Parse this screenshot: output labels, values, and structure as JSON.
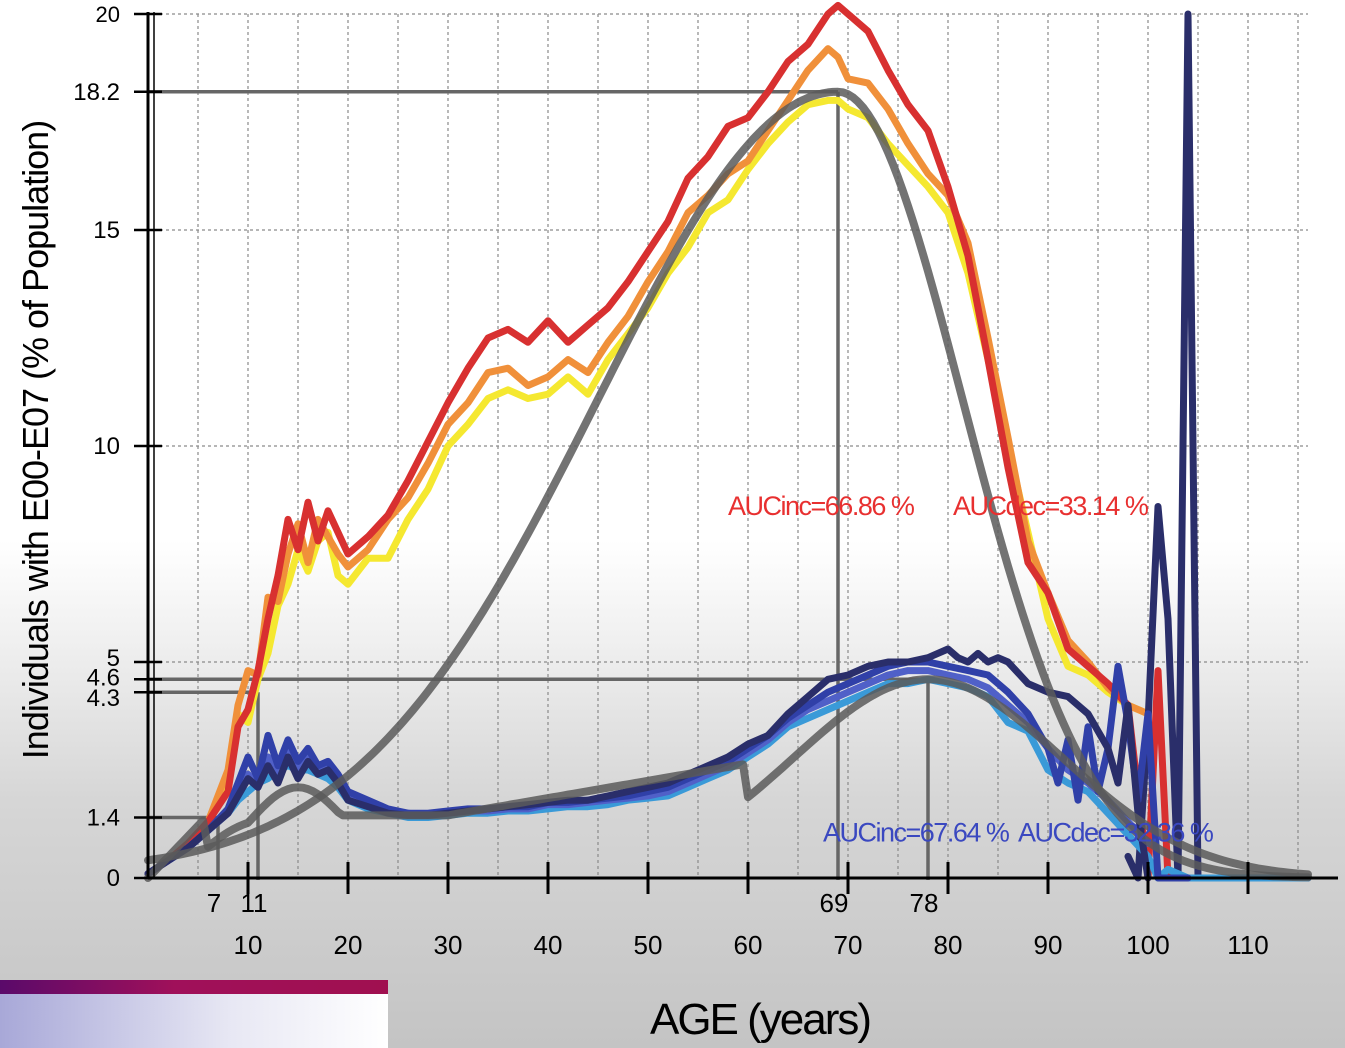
{
  "chart_data": {
    "type": "line",
    "title": "",
    "xlabel": "AGE (years)",
    "ylabel": "Individuals with E00-E07 (% of Population)",
    "xlim": [
      0,
      116
    ],
    "ylim": [
      0,
      20
    ],
    "x_ticks": [
      10,
      20,
      30,
      40,
      50,
      60,
      70,
      80,
      90,
      100,
      110
    ],
    "y_ticks": [
      0,
      1.4,
      4.3,
      4.6,
      5,
      10,
      15,
      18.2,
      20
    ],
    "grid": true,
    "markers": [
      {
        "label": "7",
        "x": 7,
        "y": 1.4
      },
      {
        "label": "11",
        "x": 11,
        "y": 4.3
      },
      {
        "label": "69",
        "x": 69,
        "y": 18.2
      },
      {
        "label": "78",
        "x": 78,
        "y": 4.6
      }
    ],
    "annotations": [
      {
        "text": "AUCinc=66.86 %",
        "x": 58,
        "y": 8.4,
        "color": "#e83030"
      },
      {
        "text": "AUCdec=33.14 %",
        "x": 80.5,
        "y": 8.4,
        "color": "#e83030"
      },
      {
        "text": "AUCinc=67.64 %",
        "x": 67.5,
        "y": 0.85,
        "color": "#3a48c0"
      },
      {
        "text": "AUCdec=32.36 %",
        "x": 87,
        "y": 0.85,
        "color": "#3a48c0"
      }
    ],
    "series": [
      {
        "color": "#f5e830",
        "group": "upper",
        "x": [
          0,
          2,
          4,
          6,
          8,
          9,
          10,
          11,
          12,
          13,
          14,
          15,
          16,
          17,
          18,
          19,
          20,
          22,
          24,
          26,
          28,
          30,
          32,
          34,
          36,
          38,
          40,
          42,
          44,
          46,
          48,
          50,
          52,
          54,
          56,
          58,
          60,
          62,
          64,
          66,
          68,
          69,
          70,
          72,
          74,
          76,
          78,
          80,
          82,
          84,
          86,
          88,
          90,
          92,
          94,
          96,
          98,
          100
        ],
        "y": [
          0.1,
          0.4,
          0.8,
          1.3,
          2.2,
          3.8,
          3.6,
          4.6,
          5.2,
          6.3,
          6.8,
          7.6,
          7.1,
          7.8,
          8.0,
          7.0,
          6.8,
          7.4,
          7.4,
          8.3,
          9.0,
          10.0,
          10.5,
          11.1,
          11.3,
          11.1,
          11.2,
          11.6,
          11.2,
          12.0,
          12.6,
          13.2,
          14.0,
          14.6,
          15.4,
          15.7,
          16.4,
          17.0,
          17.5,
          17.9,
          18.0,
          18.0,
          17.8,
          17.6,
          17.0,
          16.5,
          16.0,
          15.4,
          14.0,
          12.0,
          10.0,
          8.0,
          6.0,
          4.9,
          4.7,
          4.3,
          4.0,
          3.8
        ]
      },
      {
        "color": "#f0903a",
        "group": "upper",
        "x": [
          0,
          2,
          4,
          6,
          8,
          9,
          10,
          11,
          12,
          13,
          14,
          15,
          16,
          17,
          18,
          19,
          20,
          22,
          24,
          26,
          28,
          30,
          32,
          34,
          36,
          38,
          40,
          42,
          44,
          46,
          48,
          50,
          52,
          54,
          56,
          58,
          60,
          62,
          64,
          66,
          68,
          69,
          70,
          72,
          74,
          76,
          78,
          80,
          82,
          84,
          86,
          88,
          90,
          92,
          94,
          96,
          98,
          100
        ],
        "y": [
          0.1,
          0.4,
          0.8,
          1.3,
          2.5,
          4.0,
          4.8,
          4.7,
          6.5,
          6.4,
          7.5,
          8.2,
          7.3,
          8.3,
          7.9,
          7.5,
          7.2,
          7.6,
          8.3,
          8.8,
          9.6,
          10.5,
          11.0,
          11.7,
          11.8,
          11.4,
          11.6,
          12.0,
          11.7,
          12.4,
          13.0,
          13.8,
          14.5,
          15.4,
          15.8,
          16.3,
          16.6,
          17.3,
          18.0,
          18.7,
          19.2,
          19.0,
          18.5,
          18.4,
          17.8,
          17.0,
          16.3,
          15.8,
          14.7,
          12.5,
          10.2,
          7.8,
          6.6,
          5.5,
          5.0,
          4.4,
          4.0,
          3.8
        ]
      },
      {
        "color": "#d83030",
        "group": "upper",
        "x": [
          0,
          2,
          4,
          6,
          8,
          9,
          10,
          11,
          12,
          13,
          14,
          15,
          16,
          17,
          18,
          19,
          20,
          22,
          24,
          26,
          28,
          30,
          32,
          34,
          36,
          38,
          40,
          42,
          44,
          46,
          48,
          50,
          52,
          54,
          56,
          58,
          60,
          62,
          64,
          66,
          68,
          69,
          70,
          72,
          74,
          76,
          78,
          80,
          82,
          84,
          86,
          88,
          90,
          92,
          94,
          96,
          98,
          100,
          101,
          102,
          103
        ],
        "y": [
          0.1,
          0.4,
          0.8,
          1.3,
          2.0,
          3.5,
          3.9,
          4.8,
          6.0,
          7.0,
          8.3,
          7.6,
          8.7,
          7.8,
          8.5,
          8.0,
          7.5,
          7.9,
          8.4,
          9.2,
          10.1,
          11.0,
          11.8,
          12.5,
          12.7,
          12.4,
          12.9,
          12.4,
          12.8,
          13.2,
          13.8,
          14.5,
          15.2,
          16.2,
          16.7,
          17.4,
          17.6,
          18.2,
          18.9,
          19.3,
          20.0,
          20.2,
          20.0,
          19.6,
          18.7,
          17.9,
          17.3,
          16.0,
          14.4,
          12.0,
          9.5,
          7.3,
          6.6,
          5.3,
          4.9,
          4.5,
          4.0,
          0.0,
          4.8,
          0.0,
          0.0
        ]
      },
      {
        "color": "#2a2e6a",
        "group": "upper",
        "x": [
          98,
          99,
          100,
          101,
          102,
          103,
          104,
          105,
          106,
          108,
          110,
          112,
          114,
          116
        ],
        "y": [
          0.5,
          0.0,
          3.6,
          8.6,
          6.0,
          0.0,
          20.0,
          0.0,
          0.0,
          0.0,
          0.0,
          0.0,
          0.0,
          0.0
        ]
      },
      {
        "color": "#3a9ad8",
        "group": "lower",
        "x": [
          0,
          2,
          4,
          6,
          8,
          9,
          10,
          11,
          12,
          13,
          14,
          15,
          16,
          17,
          18,
          19,
          20,
          22,
          24,
          26,
          28,
          30,
          32,
          34,
          36,
          38,
          40,
          42,
          44,
          46,
          48,
          50,
          52,
          54,
          56,
          58,
          60,
          62,
          64,
          66,
          68,
          70,
          72,
          74,
          76,
          78,
          80,
          82,
          84,
          86,
          88,
          90,
          92,
          94,
          96,
          98,
          100,
          101,
          102,
          104,
          106,
          108,
          110,
          112,
          114,
          116
        ],
        "y": [
          0.1,
          0.4,
          0.7,
          1.1,
          1.5,
          1.8,
          2.0,
          2.2,
          2.3,
          2.5,
          2.6,
          2.5,
          2.5,
          2.4,
          2.3,
          2.1,
          1.8,
          1.6,
          1.5,
          1.4,
          1.4,
          1.45,
          1.5,
          1.5,
          1.55,
          1.55,
          1.6,
          1.65,
          1.65,
          1.7,
          1.8,
          1.85,
          1.9,
          2.1,
          2.3,
          2.5,
          2.8,
          3.1,
          3.5,
          3.7,
          3.9,
          4.1,
          4.3,
          4.5,
          4.5,
          4.6,
          4.5,
          4.4,
          4.2,
          3.6,
          3.4,
          2.5,
          2.2,
          2.0,
          1.5,
          1.0,
          0.5,
          0.0,
          0.2,
          0.0,
          0.0,
          0.0,
          0.0,
          0.0,
          0.0,
          0.0
        ]
      },
      {
        "color": "#5060c8",
        "group": "lower",
        "x": [
          0,
          2,
          4,
          6,
          8,
          9,
          10,
          11,
          12,
          13,
          14,
          15,
          16,
          17,
          18,
          19,
          20,
          22,
          24,
          26,
          28,
          30,
          32,
          34,
          36,
          38,
          40,
          42,
          44,
          46,
          48,
          50,
          52,
          54,
          56,
          58,
          60,
          62,
          64,
          66,
          68,
          70,
          72,
          74,
          76,
          78,
          80,
          82,
          84,
          86,
          88,
          90,
          92,
          94,
          96,
          98,
          100
        ],
        "y": [
          0.1,
          0.4,
          0.7,
          1.1,
          1.5,
          1.9,
          2.4,
          2.1,
          2.8,
          2.3,
          3.0,
          2.5,
          2.9,
          2.5,
          2.6,
          2.3,
          1.9,
          1.7,
          1.55,
          1.5,
          1.45,
          1.5,
          1.55,
          1.55,
          1.6,
          1.6,
          1.7,
          1.7,
          1.75,
          1.8,
          1.85,
          1.9,
          2.0,
          2.2,
          2.4,
          2.6,
          2.9,
          3.2,
          3.6,
          3.9,
          4.1,
          4.3,
          4.5,
          4.7,
          4.8,
          4.8,
          4.7,
          4.6,
          4.4,
          4.0,
          3.6,
          3.0,
          2.5,
          2.2,
          1.8,
          1.3,
          0.8
        ]
      },
      {
        "color": "#3040a8",
        "group": "lower",
        "x": [
          0,
          2,
          4,
          6,
          8,
          9,
          10,
          11,
          12,
          13,
          14,
          15,
          16,
          17,
          18,
          19,
          20,
          22,
          24,
          26,
          28,
          30,
          32,
          34,
          36,
          38,
          40,
          42,
          44,
          46,
          48,
          50,
          52,
          54,
          56,
          58,
          60,
          62,
          64,
          66,
          68,
          70,
          72,
          74,
          76,
          78,
          80,
          82,
          84,
          86,
          88,
          90,
          91,
          92,
          93,
          94,
          95,
          96,
          97,
          98,
          99,
          100,
          101,
          102,
          103,
          104
        ],
        "y": [
          0.1,
          0.4,
          0.7,
          1.1,
          1.6,
          2.2,
          2.8,
          2.3,
          3.3,
          2.6,
          3.2,
          2.7,
          3.0,
          2.6,
          2.7,
          2.4,
          2.0,
          1.8,
          1.6,
          1.5,
          1.5,
          1.55,
          1.6,
          1.6,
          1.65,
          1.65,
          1.75,
          1.75,
          1.8,
          1.85,
          1.9,
          2.0,
          2.1,
          2.3,
          2.5,
          2.7,
          3.0,
          3.3,
          3.7,
          4.0,
          4.3,
          4.5,
          4.7,
          4.9,
          5.0,
          5.0,
          4.9,
          4.8,
          4.7,
          4.3,
          3.8,
          3.0,
          2.2,
          3.2,
          1.8,
          3.5,
          2.0,
          3.0,
          4.9,
          3.6,
          1.8,
          3.8,
          0.0,
          0.0,
          0.0,
          0.0
        ]
      },
      {
        "color": "#2a2e6a",
        "group": "lower",
        "x": [
          0,
          2,
          4,
          6,
          8,
          9,
          10,
          11,
          12,
          13,
          14,
          15,
          16,
          17,
          18,
          19,
          20,
          22,
          24,
          26,
          28,
          30,
          32,
          34,
          36,
          38,
          40,
          42,
          44,
          46,
          48,
          50,
          52,
          54,
          56,
          58,
          60,
          62,
          64,
          66,
          68,
          70,
          72,
          74,
          76,
          78,
          80,
          81,
          82,
          83,
          84,
          85,
          86,
          88,
          90,
          92,
          94,
          96,
          97,
          98,
          99,
          100
        ],
        "y": [
          0.1,
          0.4,
          0.7,
          1.1,
          1.5,
          1.9,
          2.3,
          2.1,
          2.6,
          2.2,
          2.8,
          2.3,
          2.7,
          2.4,
          2.5,
          2.2,
          1.8,
          1.65,
          1.5,
          1.45,
          1.45,
          1.5,
          1.55,
          1.6,
          1.65,
          1.7,
          1.75,
          1.8,
          1.8,
          1.9,
          2.0,
          2.1,
          2.2,
          2.4,
          2.6,
          2.8,
          3.1,
          3.3,
          3.8,
          4.2,
          4.6,
          4.7,
          4.9,
          5.0,
          5.0,
          5.1,
          5.3,
          5.1,
          5.0,
          5.2,
          5.0,
          5.1,
          5.0,
          4.5,
          4.3,
          4.2,
          3.8,
          3.0,
          2.2,
          4.0,
          1.5,
          0.0
        ]
      }
    ],
    "fits": [
      {
        "color": "#5a5a5a",
        "group": "upper",
        "peak_x": 69,
        "peak_y": 18.2,
        "sigma_left": 24,
        "sigma_right": 12.5,
        "x_end": 116
      },
      {
        "color": "#5a5a5a",
        "group": "lower",
        "x_end": 116
      }
    ]
  }
}
